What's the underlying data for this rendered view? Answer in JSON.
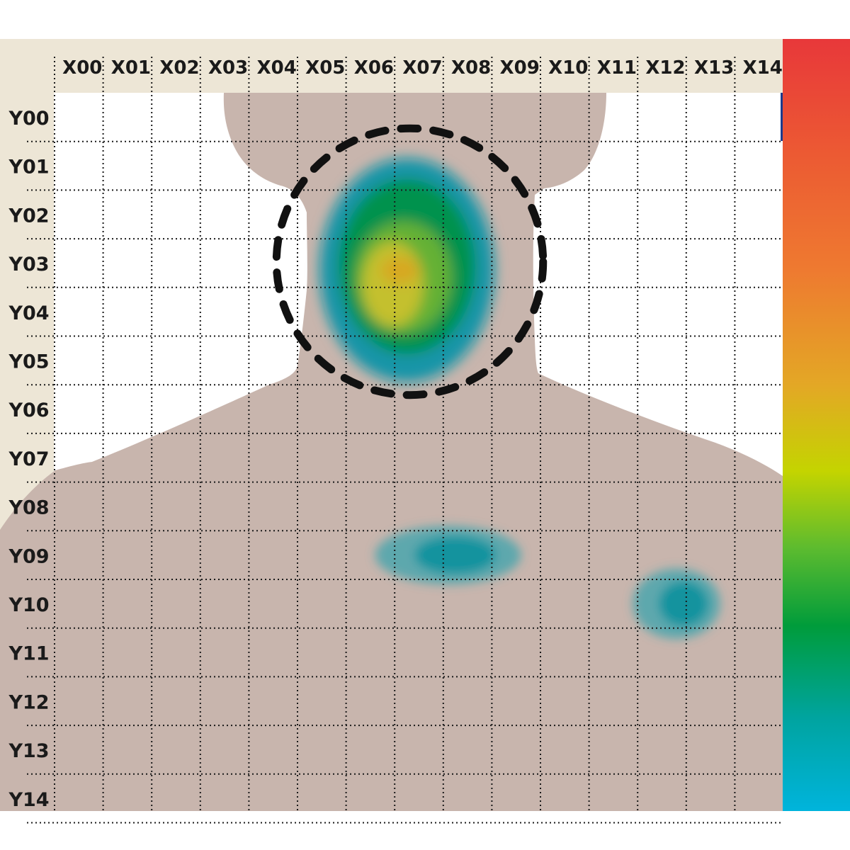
{
  "chart_data": {
    "type": "heatmap",
    "x_ticks": [
      "X00",
      "X01",
      "X02",
      "X03",
      "X04",
      "X05",
      "X06",
      "X07",
      "X08",
      "X09",
      "X10",
      "X11",
      "X12",
      "X13",
      "X14"
    ],
    "y_ticks": [
      "Y00",
      "Y01",
      "Y02",
      "Y03",
      "Y04",
      "Y05",
      "Y06",
      "Y07",
      "Y08",
      "Y09",
      "Y10",
      "Y11",
      "Y12",
      "Y13",
      "Y14"
    ],
    "grid": true,
    "colorbar": {
      "position": "right",
      "colors_top_to_bottom": [
        "#e8383a",
        "#ee7a30",
        "#e3a825",
        "#c4d400",
        "#5cbb2f",
        "#009c3b",
        "#00a4a0",
        "#00b4dc"
      ]
    },
    "background_colors": {
      "panel": "#ede6d6",
      "body": "#c8b5ad",
      "plot": "#ffffff",
      "grid": "#1a1a1a"
    },
    "hotspots": [
      {
        "name": "neck-hotspot",
        "x": 6.9,
        "y": 3.0,
        "peak": 0.62,
        "spread_x": 1.8,
        "spread_y": 2.3
      },
      {
        "name": "chest-hotspot",
        "x": 7.6,
        "y": 9.0,
        "peak": 0.1,
        "spread_x": 1.5,
        "spread_y": 0.5
      },
      {
        "name": "right-chest-hotspot",
        "x": 12.3,
        "y": 10.0,
        "peak": 0.12,
        "spread_x": 0.9,
        "spread_y": 0.6
      }
    ],
    "highlight_circle": {
      "center_x": 7.0,
      "center_y": 3.0,
      "radius": 2.8,
      "style": "dashed"
    }
  }
}
